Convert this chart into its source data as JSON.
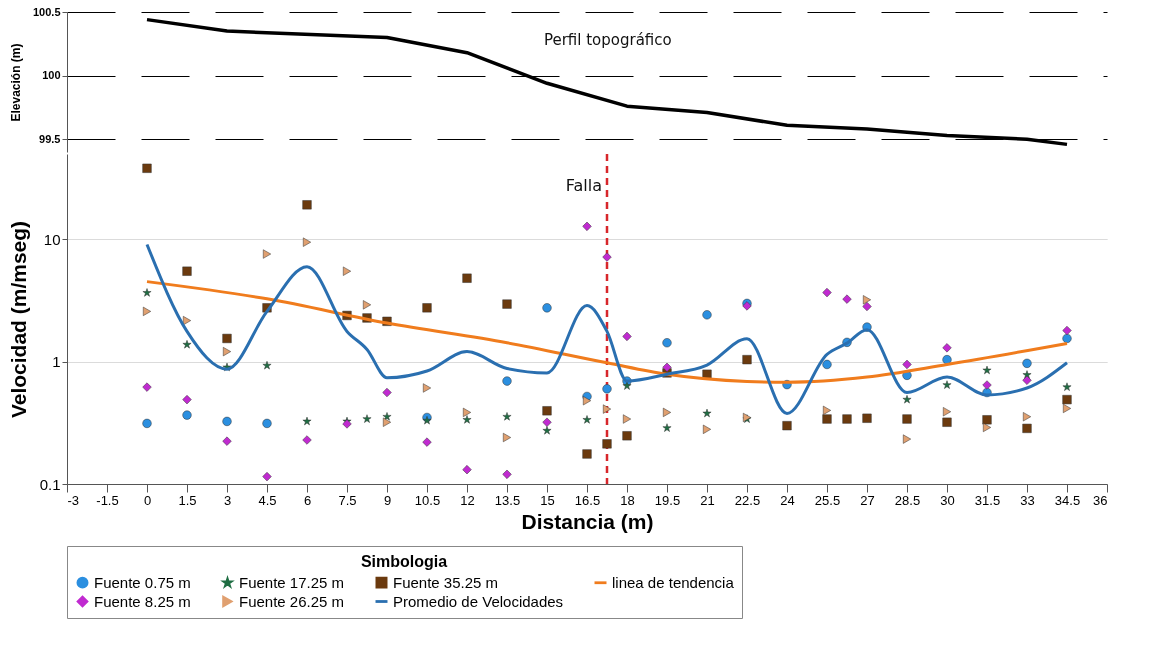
{
  "chart_data": [
    {
      "type": "line",
      "ylabel": "Elevación (m)",
      "annotations": [
        "Perfil topográfico"
      ],
      "x": [
        0,
        3,
        9,
        12,
        15,
        18,
        21,
        24,
        27,
        30,
        33,
        34.5
      ],
      "series": [
        {
          "color": "#000000",
          "values": [
            100.44,
            100.35,
            100.3,
            100.18,
            99.94,
            99.76,
            99.71,
            99.61,
            99.58,
            99.53,
            99.5,
            99.46
          ]
        }
      ],
      "xlim": [
        -3,
        36
      ],
      "ylim": [
        99.4,
        100.5
      ],
      "yticks": [
        99.5,
        100,
        100.5
      ],
      "grid": "y",
      "tick_labels": "y",
      "marker": "none"
    },
    {
      "type": "scatter",
      "xlabel": "Distancia (m)",
      "ylabel": "Velocidad (m/mseg)",
      "legend_title": "Simbologia",
      "log": true,
      "xlim": [
        -3,
        36
      ],
      "xticks": [
        -3,
        -1.5,
        0,
        1.5,
        3,
        4.5,
        6,
        7.5,
        9,
        10.5,
        12,
        13.5,
        15,
        16.5,
        18,
        19.5,
        21,
        22.5,
        24,
        25.5,
        27,
        28.5,
        30,
        31.5,
        33,
        34.5,
        36
      ],
      "ylim": [
        0.1,
        50
      ],
      "yticks": [
        0.1,
        1,
        10
      ],
      "grid": "y",
      "legend": "bottom",
      "ref_lines": [
        {
          "axis": "x",
          "value": 17.25,
          "label": "Falla",
          "color": "#d7262b",
          "line_style": "dashed"
        }
      ],
      "series": [
        {
          "name": "Fuente 0.75 m",
          "type": "scatter",
          "marker": "circle",
          "color": "#2b8fe0",
          "x": [
            0,
            1.5,
            3,
            4.5,
            10.5,
            13.5,
            15,
            16.5,
            17.25,
            18,
            19.5,
            21,
            22.5,
            24,
            25.5,
            26.25,
            27,
            28.5,
            30,
            31.5,
            33,
            34.5
          ],
          "values": [
            0.313,
            0.366,
            0.325,
            0.313,
            0.35,
            0.695,
            2.76,
            0.52,
            0.6,
            0.695,
            1.43,
            2.42,
            3.0,
            0.65,
            0.95,
            1.44,
            1.92,
            0.774,
            1.04,
            0.56,
            0.97,
            1.55
          ]
        },
        {
          "name": "Fuente 17.25 m",
          "type": "scatter",
          "marker": "star",
          "color": "#1f6e43",
          "x": [
            0,
            1.5,
            3,
            4.5,
            6,
            7.5,
            8.25,
            9,
            10.5,
            12,
            13.5,
            15,
            16.5,
            18,
            19.5,
            21,
            22.5,
            28.5,
            30,
            31.5,
            33,
            34.5
          ],
          "values": [
            3.66,
            1.38,
            0.9,
            0.93,
            0.325,
            0.325,
            0.34,
            0.355,
            0.33,
            0.335,
            0.355,
            0.273,
            0.335,
            0.634,
            0.287,
            0.378,
            0.34,
            0.49,
            0.645,
            0.85,
            0.78,
            0.62
          ]
        },
        {
          "name": "Fuente 35.25 m",
          "type": "scatter",
          "marker": "square",
          "color": "#6b3a0e",
          "x": [
            0,
            1.5,
            3,
            4.5,
            6,
            7.5,
            8.25,
            9,
            10.5,
            12,
            13.5,
            15,
            16.5,
            17.25,
            18,
            19.5,
            21,
            22.5,
            24,
            25.5,
            26.25,
            27,
            28.5,
            30,
            31.5,
            33,
            34.5
          ],
          "values": [
            38.2,
            5.5,
            1.55,
            2.76,
            19.2,
            2.39,
            2.28,
            2.14,
            2.76,
            4.82,
            2.96,
            0.397,
            0.176,
            0.213,
            0.248,
            0.81,
            0.79,
            1.04,
            0.3,
            0.34,
            0.34,
            0.345,
            0.34,
            0.32,
            0.335,
            0.285,
            0.49
          ]
        },
        {
          "name": "linea de tendencia",
          "type": "line",
          "marker": "none",
          "color": "#f07c1d",
          "x": [
            0,
            4.5,
            9,
            13.5,
            17.25,
            19.5,
            22.5,
            24,
            27,
            30,
            34.5
          ],
          "values": [
            4.52,
            3.27,
            2.07,
            1.43,
            0.98,
            0.79,
            0.69,
            0.68,
            0.75,
            0.95,
            1.41
          ]
        },
        {
          "name": "Fuente 8.25 m",
          "type": "scatter",
          "marker": "diamond",
          "color": "#c02ad0",
          "x": [
            0,
            1.5,
            3,
            4.5,
            6,
            7.5,
            9,
            10.5,
            12,
            13.5,
            15,
            16.5,
            17.25,
            18,
            19.5,
            22.5,
            25.5,
            26.25,
            27,
            28.5,
            30,
            31.5,
            33,
            34.5
          ],
          "values": [
            0.62,
            0.49,
            0.224,
            0.115,
            0.229,
            0.31,
            0.56,
            0.22,
            0.131,
            0.12,
            0.32,
            12.8,
            7.18,
            1.61,
            0.9,
            2.86,
            3.68,
            3.25,
            2.83,
            0.95,
            1.3,
            0.645,
            0.705,
            1.8
          ]
        },
        {
          "name": "Fuente 26.25 m",
          "type": "scatter",
          "marker": "triangle",
          "color": "#e0a070",
          "x": [
            0,
            1.5,
            3,
            4.5,
            6,
            7.5,
            8.25,
            9,
            10.5,
            12,
            13.5,
            16.5,
            17.25,
            18,
            19.5,
            21,
            22.5,
            25.5,
            27,
            28.5,
            30,
            31.5,
            33,
            34.5
          ],
          "values": [
            2.58,
            2.17,
            1.21,
            7.6,
            9.5,
            5.5,
            2.92,
            0.32,
            0.61,
            0.385,
            0.24,
            0.48,
            0.41,
            0.34,
            0.385,
            0.28,
            0.35,
            0.4,
            3.21,
            0.233,
            0.39,
            0.29,
            0.355,
            0.415
          ]
        },
        {
          "name": "Promedio de Velocidades",
          "type": "line",
          "marker": "none",
          "color": "#2a6fb0",
          "x": [
            0,
            1.5,
            3,
            4.5,
            6,
            7.5,
            8.25,
            9,
            10.5,
            12,
            13.5,
            15,
            16.5,
            17.25,
            18,
            19.5,
            21,
            22.5,
            24,
            25.5,
            26.25,
            27,
            28.5,
            30,
            31.5,
            33,
            34.5
          ],
          "values": [
            9.1,
            1.77,
            0.87,
            2.58,
            5.99,
            1.77,
            1.26,
            0.74,
            0.84,
            1.21,
            0.88,
            0.81,
            2.88,
            1.77,
            0.695,
            0.79,
            0.94,
            1.54,
            0.378,
            1.15,
            1.42,
            1.83,
            0.56,
            0.75,
            0.535,
            0.61,
            0.98
          ]
        }
      ]
    }
  ]
}
